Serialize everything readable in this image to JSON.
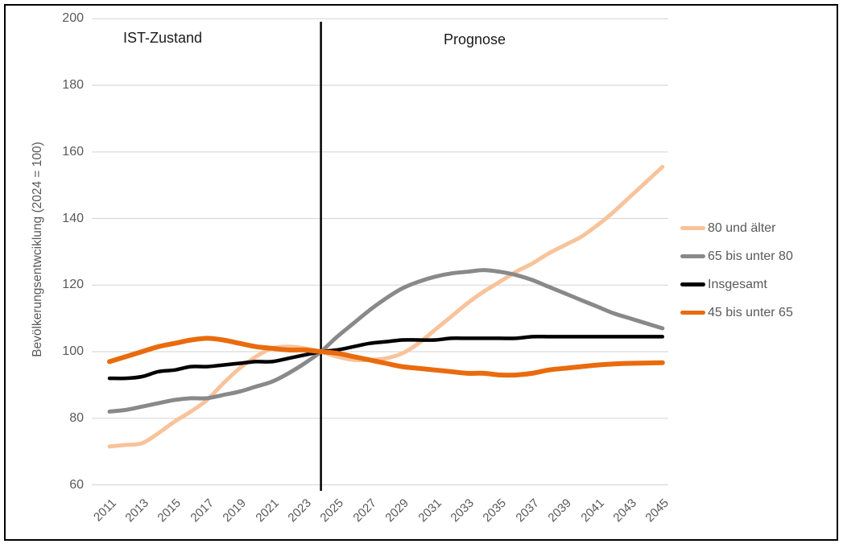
{
  "colors": {
    "gridline": "#D9D9D9",
    "tick_text": "#595959",
    "annotation_text": "#1A1A1A",
    "divider": "#000000",
    "frame_border": "#000000",
    "background": "#FFFFFF"
  },
  "chart_data": {
    "type": "line",
    "title": "",
    "xlabel": "",
    "ylabel": "Bevölkerungsentwciklung (2024 = 100)",
    "ylim": [
      60,
      200
    ],
    "yticks": [
      60,
      80,
      100,
      120,
      140,
      160,
      180,
      200
    ],
    "grid": true,
    "legend_position": "right",
    "divider_year": 2024,
    "annotations": [
      {
        "text": "IST-Zustand",
        "region": "left-of-divider"
      },
      {
        "text": "Prognose",
        "region": "right-of-divider"
      }
    ],
    "x": [
      2011,
      2012,
      2013,
      2014,
      2015,
      2016,
      2017,
      2018,
      2019,
      2020,
      2021,
      2022,
      2023,
      2024,
      2025,
      2026,
      2027,
      2028,
      2029,
      2030,
      2031,
      2032,
      2033,
      2034,
      2035,
      2036,
      2037,
      2038,
      2039,
      2040,
      2041,
      2042,
      2043,
      2044,
      2045
    ],
    "x_tick_labels": [
      "2011",
      "2013",
      "2015",
      "2017",
      "2019",
      "2021",
      "2023",
      "2025",
      "2027",
      "2029",
      "2031",
      "2033",
      "2035",
      "2037",
      "2039",
      "2041",
      "2043",
      "2045"
    ],
    "series": [
      {
        "name": "80 und älter",
        "color": "#F8C39B",
        "values": [
          71.5,
          72,
          72.5,
          75.5,
          79,
          82,
          85.5,
          90.5,
          95,
          98.5,
          101,
          101.5,
          101,
          100,
          98.5,
          97.5,
          97.5,
          98,
          99.5,
          102.5,
          106.5,
          110.5,
          114.5,
          118,
          121,
          124,
          126.5,
          129.5,
          132,
          134.5,
          138,
          142,
          146.5,
          151,
          155.5
        ]
      },
      {
        "name": "65 bis unter 80",
        "color": "#898989",
        "values": [
          82,
          82.5,
          83.5,
          84.5,
          85.5,
          86,
          86,
          87,
          88,
          89.5,
          91,
          93.5,
          96.5,
          100,
          104.5,
          108.5,
          112.5,
          116,
          119,
          121,
          122.5,
          123.5,
          124,
          124.5,
          124,
          123,
          121.5,
          119.5,
          117.5,
          115.5,
          113.5,
          111.5,
          110,
          108.5,
          107
        ]
      },
      {
        "name": "Insgesamt",
        "color": "#000000",
        "values": [
          92,
          92,
          92.5,
          94,
          94.5,
          95.5,
          95.5,
          96,
          96.5,
          97,
          97,
          98,
          99,
          100,
          100.5,
          101.5,
          102.5,
          103,
          103.5,
          103.5,
          103.5,
          104,
          104,
          104,
          104,
          104,
          104.5,
          104.5,
          104.5,
          104.5,
          104.5,
          104.5,
          104.5,
          104.5,
          104.5
        ]
      },
      {
        "name": "45 bis unter 65",
        "color": "#E96B0E",
        "values": [
          97,
          98.5,
          100,
          101.5,
          102.5,
          103.5,
          104,
          103.5,
          102.5,
          101.5,
          101,
          100.5,
          100.5,
          100,
          99.5,
          98.5,
          97.5,
          96.5,
          95.5,
          95,
          94.5,
          94,
          93.5,
          93.5,
          93,
          93,
          93.5,
          94.5,
          95,
          95.5,
          96,
          96.3,
          96.5,
          96.6,
          96.7
        ]
      }
    ]
  }
}
